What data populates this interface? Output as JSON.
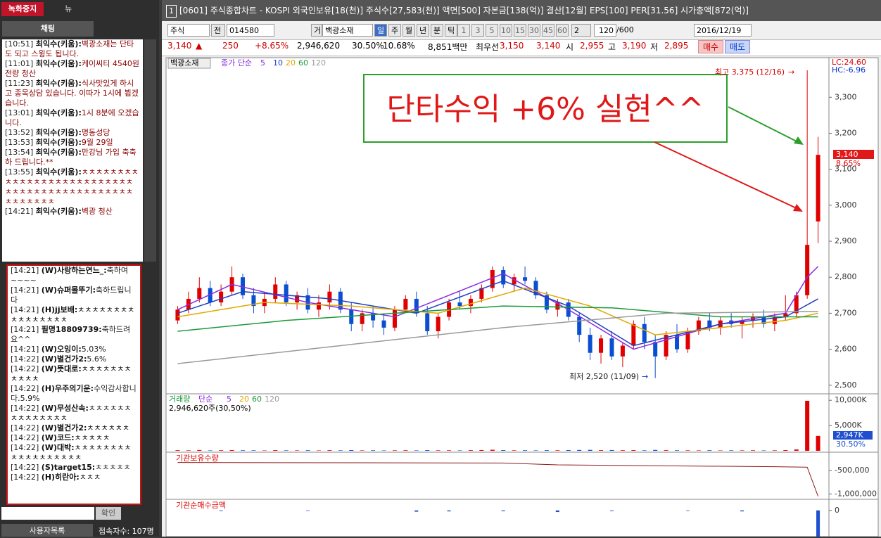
{
  "left_panel": {
    "record_button": "녹화중지",
    "news_button": "뉴",
    "chat_tab": "채팅",
    "messages": [
      {
        "time": "[10:51]",
        "user": "최익수(키움):",
        "text": "벽광소재는 단타도 되고 스윙도 됩니다."
      },
      {
        "time": "[11:01]",
        "user": "최익수(키움):",
        "text": "케이씨티 4540원 전량 청산"
      },
      {
        "time": "[11:23]",
        "user": "최익수(키움):",
        "text": "식사맛있게 하시고 종목상담 있습니다. 이따가 1시에 뵙겠습니다."
      },
      {
        "time": "[13:01]",
        "user": "최익수(키움):",
        "text": "1시 8분에 오겠습니다."
      },
      {
        "time": "[13:52]",
        "user": "최익수(키움):",
        "text": "명동성당"
      },
      {
        "time": "[13:53]",
        "user": "최익수(키움):",
        "text": "9월 29일"
      },
      {
        "time": "[13:54]",
        "user": "최익수(키움):",
        "text": "만강님 가입 축축하 드립니다.**"
      },
      {
        "time": "[13:55]",
        "user": "최익수(키움):",
        "text": "ㅊㅊㅊㅊㅊㅊㅊㅊㅊㅊㅊㅊㅊㅊㅊㅊㅊㅊㅊㅊㅊㅊㅊㅊㅊㅊㅊㅊㅊㅊㅊㅊㅊㅊㅊㅊㅊㅊㅊㅊㅊㅊㅊㅊㅊㅊㅊㅊㅊㅊㅊ"
      },
      {
        "time": "[14:21]",
        "user": "최익수(키움):",
        "text": "벽광 청산"
      }
    ],
    "public_messages": [
      {
        "time": "[14:21]",
        "user": "(W)사랑하는연느_:",
        "text": "축하여~~~~"
      },
      {
        "time": "[14:21]",
        "user": "(W)슈퍼몰뚜기:",
        "text": "축하드립니다"
      },
      {
        "time": "[14:21]",
        "user": "(H)jj보배:",
        "text": "ㅊㅊㅊㅊㅊㅊㅊㅊㅊㅊㅊㅊㅊㅊㅊㅊ"
      },
      {
        "time": "[14:21]",
        "user": "필명18809739:",
        "text": "축하드려요^^"
      },
      {
        "time": "[14:21]",
        "user": "(W)오잉이:",
        "text": "5.03%"
      },
      {
        "time": "[14:22]",
        "user": "(W)별건가2:",
        "text": "5.6%"
      },
      {
        "time": "[14:22]",
        "user": "(W)뜻대로:",
        "text": "ㅊㅊㅊㅊㅊㅊㅊㅊㅊㅊㅊ"
      },
      {
        "time": "[14:22]",
        "user": "(H)우주의기운:",
        "text": "수익감사합니다.5.9%"
      },
      {
        "time": "[14:22]",
        "user": "(W)무성산속:",
        "text": "ㅊㅊㅊㅊㅊㅊㅊㅊㅊㅊㅊㅊㅊㅊ"
      },
      {
        "time": "[14:22]",
        "user": "(W)별건가2:",
        "text": "ㅊㅊㅊㅊㅊㅊ"
      },
      {
        "time": "[14:22]",
        "user": "(W)코드:",
        "text": "ㅊㅊㅊㅊㅊ"
      },
      {
        "time": "[14:22]",
        "user": "(W)대박:",
        "text": "ㅊㅊㅊㅊㅊㅊㅊㅊㅊㅊㅊㅊㅊㅊㅊㅊㅊㅊ"
      },
      {
        "time": "[14:22]",
        "user": "(S)target15:",
        "text": "ㅊㅊㅊㅊㅊ"
      },
      {
        "time": "[14:22]",
        "user": "(H)히란아:",
        "text": "ㅊㅊㅊ"
      }
    ],
    "confirm": "확인",
    "user_list": "사용자목록",
    "user_count": "접속자수: 107명"
  },
  "window": {
    "number": "1",
    "title": "[0601] 주식종합차트 - KOSPI 외국인보유[18(천)] 주식수[27,583(천)] 액면[500] 자본금[138(억)] 결산[12월] EPS[100] PER[31.56] 시가총액[872(억)]",
    "toolbar": {
      "market": "주식",
      "scope": "전",
      "code": "014580",
      "prefix": "거",
      "name": "백광소재",
      "periods": [
        "일",
        "주",
        "월",
        "년",
        "분",
        "틱"
      ],
      "intervals": [
        "1",
        "3",
        "5",
        "10",
        "15",
        "30",
        "45",
        "60"
      ],
      "multiplier": "2",
      "count": "120",
      "max": "/600",
      "date": "2016/12/19"
    },
    "quote": {
      "price": "3,140",
      "change": "250",
      "change_pct": "+8.65%",
      "volume": "2,946,620",
      "turnover": "30.50%",
      "ratio": "10.68%",
      "amount": "8,851백만",
      "best_label": "최우선",
      "ask": "3,150",
      "bid": "3,140",
      "open_label": "시",
      "open": "2,955",
      "high_label": "고",
      "high": "3,190",
      "low_label": "저",
      "low": "2,895",
      "buy": "매수",
      "sell": "매도"
    }
  },
  "chart_data": [
    {
      "type": "candlestick",
      "stock_tab": "백광소재",
      "legend_title": "종가 단순",
      "candles": [
        [
          2680,
          2720,
          2670,
          2710
        ],
        [
          2710,
          2760,
          2700,
          2740
        ],
        [
          2740,
          2800,
          2730,
          2770
        ],
        [
          2770,
          2790,
          2720,
          2730
        ],
        [
          2730,
          2780,
          2720,
          2760
        ],
        [
          2760,
          2830,
          2750,
          2800
        ],
        [
          2800,
          2810,
          2740,
          2750
        ],
        [
          2750,
          2770,
          2700,
          2720
        ],
        [
          2720,
          2760,
          2700,
          2740
        ],
        [
          2740,
          2800,
          2730,
          2780
        ],
        [
          2780,
          2790,
          2720,
          2730
        ],
        [
          2730,
          2760,
          2710,
          2750
        ],
        [
          2750,
          2770,
          2700,
          2710
        ],
        [
          2710,
          2750,
          2690,
          2730
        ],
        [
          2730,
          2780,
          2710,
          2760
        ],
        [
          2760,
          2770,
          2700,
          2710
        ],
        [
          2710,
          2730,
          2650,
          2670
        ],
        [
          2670,
          2710,
          2650,
          2700
        ],
        [
          2700,
          2720,
          2660,
          2680
        ],
        [
          2680,
          2700,
          2640,
          2660
        ],
        [
          2660,
          2720,
          2650,
          2710
        ],
        [
          2710,
          2750,
          2700,
          2740
        ],
        [
          2740,
          2760,
          2690,
          2700
        ],
        [
          2700,
          2720,
          2640,
          2650
        ],
        [
          2650,
          2700,
          2630,
          2690
        ],
        [
          2690,
          2740,
          2680,
          2730
        ],
        [
          2730,
          2760,
          2710,
          2720
        ],
        [
          2720,
          2750,
          2700,
          2740
        ],
        [
          2740,
          2780,
          2730,
          2770
        ],
        [
          2770,
          2830,
          2760,
          2820
        ],
        [
          2820,
          2830,
          2770,
          2780
        ],
        [
          2780,
          2810,
          2760,
          2800
        ],
        [
          2800,
          2830,
          2780,
          2790
        ],
        [
          2790,
          2800,
          2740,
          2750
        ],
        [
          2750,
          2760,
          2700,
          2710
        ],
        [
          2710,
          2740,
          2690,
          2730
        ],
        [
          2730,
          2740,
          2680,
          2690
        ],
        [
          2690,
          2700,
          2620,
          2640
        ],
        [
          2640,
          2660,
          2570,
          2590
        ],
        [
          2590,
          2640,
          2560,
          2630
        ],
        [
          2630,
          2650,
          2570,
          2580
        ],
        [
          2580,
          2620,
          2550,
          2610
        ],
        [
          2610,
          2680,
          2600,
          2670
        ],
        [
          2670,
          2690,
          2600,
          2620
        ],
        [
          2620,
          2640,
          2520,
          2580
        ],
        [
          2580,
          2650,
          2570,
          2640
        ],
        [
          2640,
          2670,
          2590,
          2600
        ],
        [
          2600,
          2660,
          2590,
          2650
        ],
        [
          2650,
          2690,
          2640,
          2680
        ],
        [
          2680,
          2700,
          2650,
          2660
        ],
        [
          2660,
          2690,
          2640,
          2680
        ],
        [
          2680,
          2700,
          2660,
          2670
        ],
        [
          2670,
          2690,
          2630,
          2680
        ],
        [
          2680,
          2700,
          2660,
          2690
        ],
        [
          2690,
          2710,
          2660,
          2670
        ],
        [
          2670,
          2700,
          2650,
          2690
        ],
        [
          2690,
          2750,
          2680,
          2700
        ],
        [
          2700,
          2760,
          2690,
          2750
        ],
        [
          2750,
          3375,
          2740,
          2890
        ],
        [
          2955,
          3190,
          2895,
          3140
        ]
      ],
      "up_color": "#e00000",
      "down_color": "#0a4fd0",
      "moving_averages": [
        {
          "name": "5",
          "color": "#8a2be2",
          "points": [
            [
              0,
              2710
            ],
            [
              5,
              2780
            ],
            [
              12,
              2730
            ],
            [
              20,
              2690
            ],
            [
              30,
              2810
            ],
            [
              36,
              2710
            ],
            [
              42,
              2600
            ],
            [
              50,
              2670
            ],
            [
              56,
              2700
            ],
            [
              58,
              2800
            ],
            [
              59,
              2830
            ]
          ]
        },
        {
          "name": "10",
          "color": "#1f3fbf",
          "points": [
            [
              0,
              2700
            ],
            [
              6,
              2760
            ],
            [
              14,
              2740
            ],
            [
              22,
              2700
            ],
            [
              30,
              2790
            ],
            [
              36,
              2720
            ],
            [
              42,
              2610
            ],
            [
              50,
              2670
            ],
            [
              56,
              2690
            ],
            [
              59,
              2740
            ]
          ]
        },
        {
          "name": "20",
          "color": "#e0a800",
          "points": [
            [
              0,
              2690
            ],
            [
              8,
              2730
            ],
            [
              16,
              2720
            ],
            [
              24,
              2700
            ],
            [
              32,
              2770
            ],
            [
              38,
              2720
            ],
            [
              44,
              2640
            ],
            [
              50,
              2660
            ],
            [
              56,
              2680
            ],
            [
              59,
              2700
            ]
          ]
        },
        {
          "name": "60",
          "color": "#1a9a3a",
          "points": [
            [
              0,
              2650
            ],
            [
              10,
              2680
            ],
            [
              20,
              2700
            ],
            [
              30,
              2720
            ],
            [
              40,
              2715
            ],
            [
              50,
              2690
            ],
            [
              59,
              2690
            ]
          ]
        },
        {
          "name": "120",
          "color": "#999999",
          "points": [
            [
              0,
              2560
            ],
            [
              15,
              2610
            ],
            [
              30,
              2660
            ],
            [
              45,
              2700
            ],
            [
              59,
              2705
            ]
          ]
        }
      ],
      "xlim": [
        -1,
        60
      ],
      "ylim": [
        2480,
        3410
      ],
      "yticks": [
        {
          "value": 2500,
          "label": "2,500"
        },
        {
          "value": 2600,
          "label": "2,600"
        },
        {
          "value": 2700,
          "label": "2,700"
        },
        {
          "value": 2800,
          "label": "2,800"
        },
        {
          "value": 2900,
          "label": "2,900"
        },
        {
          "value": 3000,
          "label": "3,000"
        },
        {
          "value": 3100,
          "label": "3,100"
        },
        {
          "value": 3200,
          "label": "3,200"
        },
        {
          "value": 3300,
          "label": "3,300"
        }
      ],
      "lc": "LC:24.60",
      "hc": "HC:-6.96",
      "last_price": "3,140",
      "last_pct": "8.65%",
      "high_note": "최고 3,375 (12/16)",
      "low_note": "최저 2,520 (11/09)",
      "callout": "단타수익 +6% 실현^^"
    },
    {
      "type": "bar",
      "title": "거래량",
      "legend_title": "단순",
      "legend": [
        "5",
        "20",
        "60",
        "120"
      ],
      "legend_colors": [
        "#8a2be2",
        "#e0a800",
        "#1a9a3a",
        "#999999"
      ],
      "summary": "2,946,620주(30,50%)",
      "values": [
        120,
        90,
        150,
        80,
        110,
        140,
        100,
        90,
        70,
        130,
        90,
        80,
        110,
        70,
        120,
        90,
        140,
        80,
        100,
        70,
        90,
        110,
        80,
        130,
        90,
        100,
        80,
        120,
        150,
        200,
        130,
        90,
        110,
        80,
        120,
        100,
        140,
        160,
        180,
        120,
        150,
        110,
        130,
        90,
        170,
        120,
        100,
        90,
        80,
        110,
        70,
        90,
        80,
        100,
        70,
        90,
        140,
        260,
        9900,
        2947
      ],
      "colors_by_candle": true,
      "ylim": [
        0,
        11000
      ],
      "yticks": [
        {
          "value": 5000,
          "label": "5,000K"
        },
        {
          "value": 10000,
          "label": "10,000K"
        }
      ],
      "last_label": "2,947K",
      "last_pct": "30.50%"
    },
    {
      "type": "line",
      "title": "기관보유수량",
      "color": "#8b1a1a",
      "points": [
        [
          0,
          -330000
        ],
        [
          30,
          -340000
        ],
        [
          35,
          -380000
        ],
        [
          55,
          -420000
        ],
        [
          58,
          -430000
        ],
        [
          59,
          -1050000
        ]
      ],
      "ylim": [
        -1100000,
        -140000
      ],
      "yticks": [
        {
          "value": -500000,
          "label": "-500,000"
        },
        {
          "value": -1000000,
          "label": "-1,000,000"
        }
      ]
    },
    {
      "type": "bar",
      "title": "기관순매수금액",
      "color": "#1f4fd0",
      "points": [
        [
          4,
          -20
        ],
        [
          12,
          -15
        ],
        [
          22,
          -40
        ],
        [
          25,
          -30
        ],
        [
          30,
          -25
        ],
        [
          35,
          -50
        ],
        [
          40,
          -20
        ],
        [
          47,
          -15
        ],
        [
          52,
          -30
        ],
        [
          59,
          -1400
        ]
      ],
      "ylim": [
        -1400,
        300
      ],
      "yticks": [
        {
          "value": -1000,
          "label": "-1,000"
        },
        {
          "value": 0,
          "label": "0"
        }
      ]
    }
  ]
}
